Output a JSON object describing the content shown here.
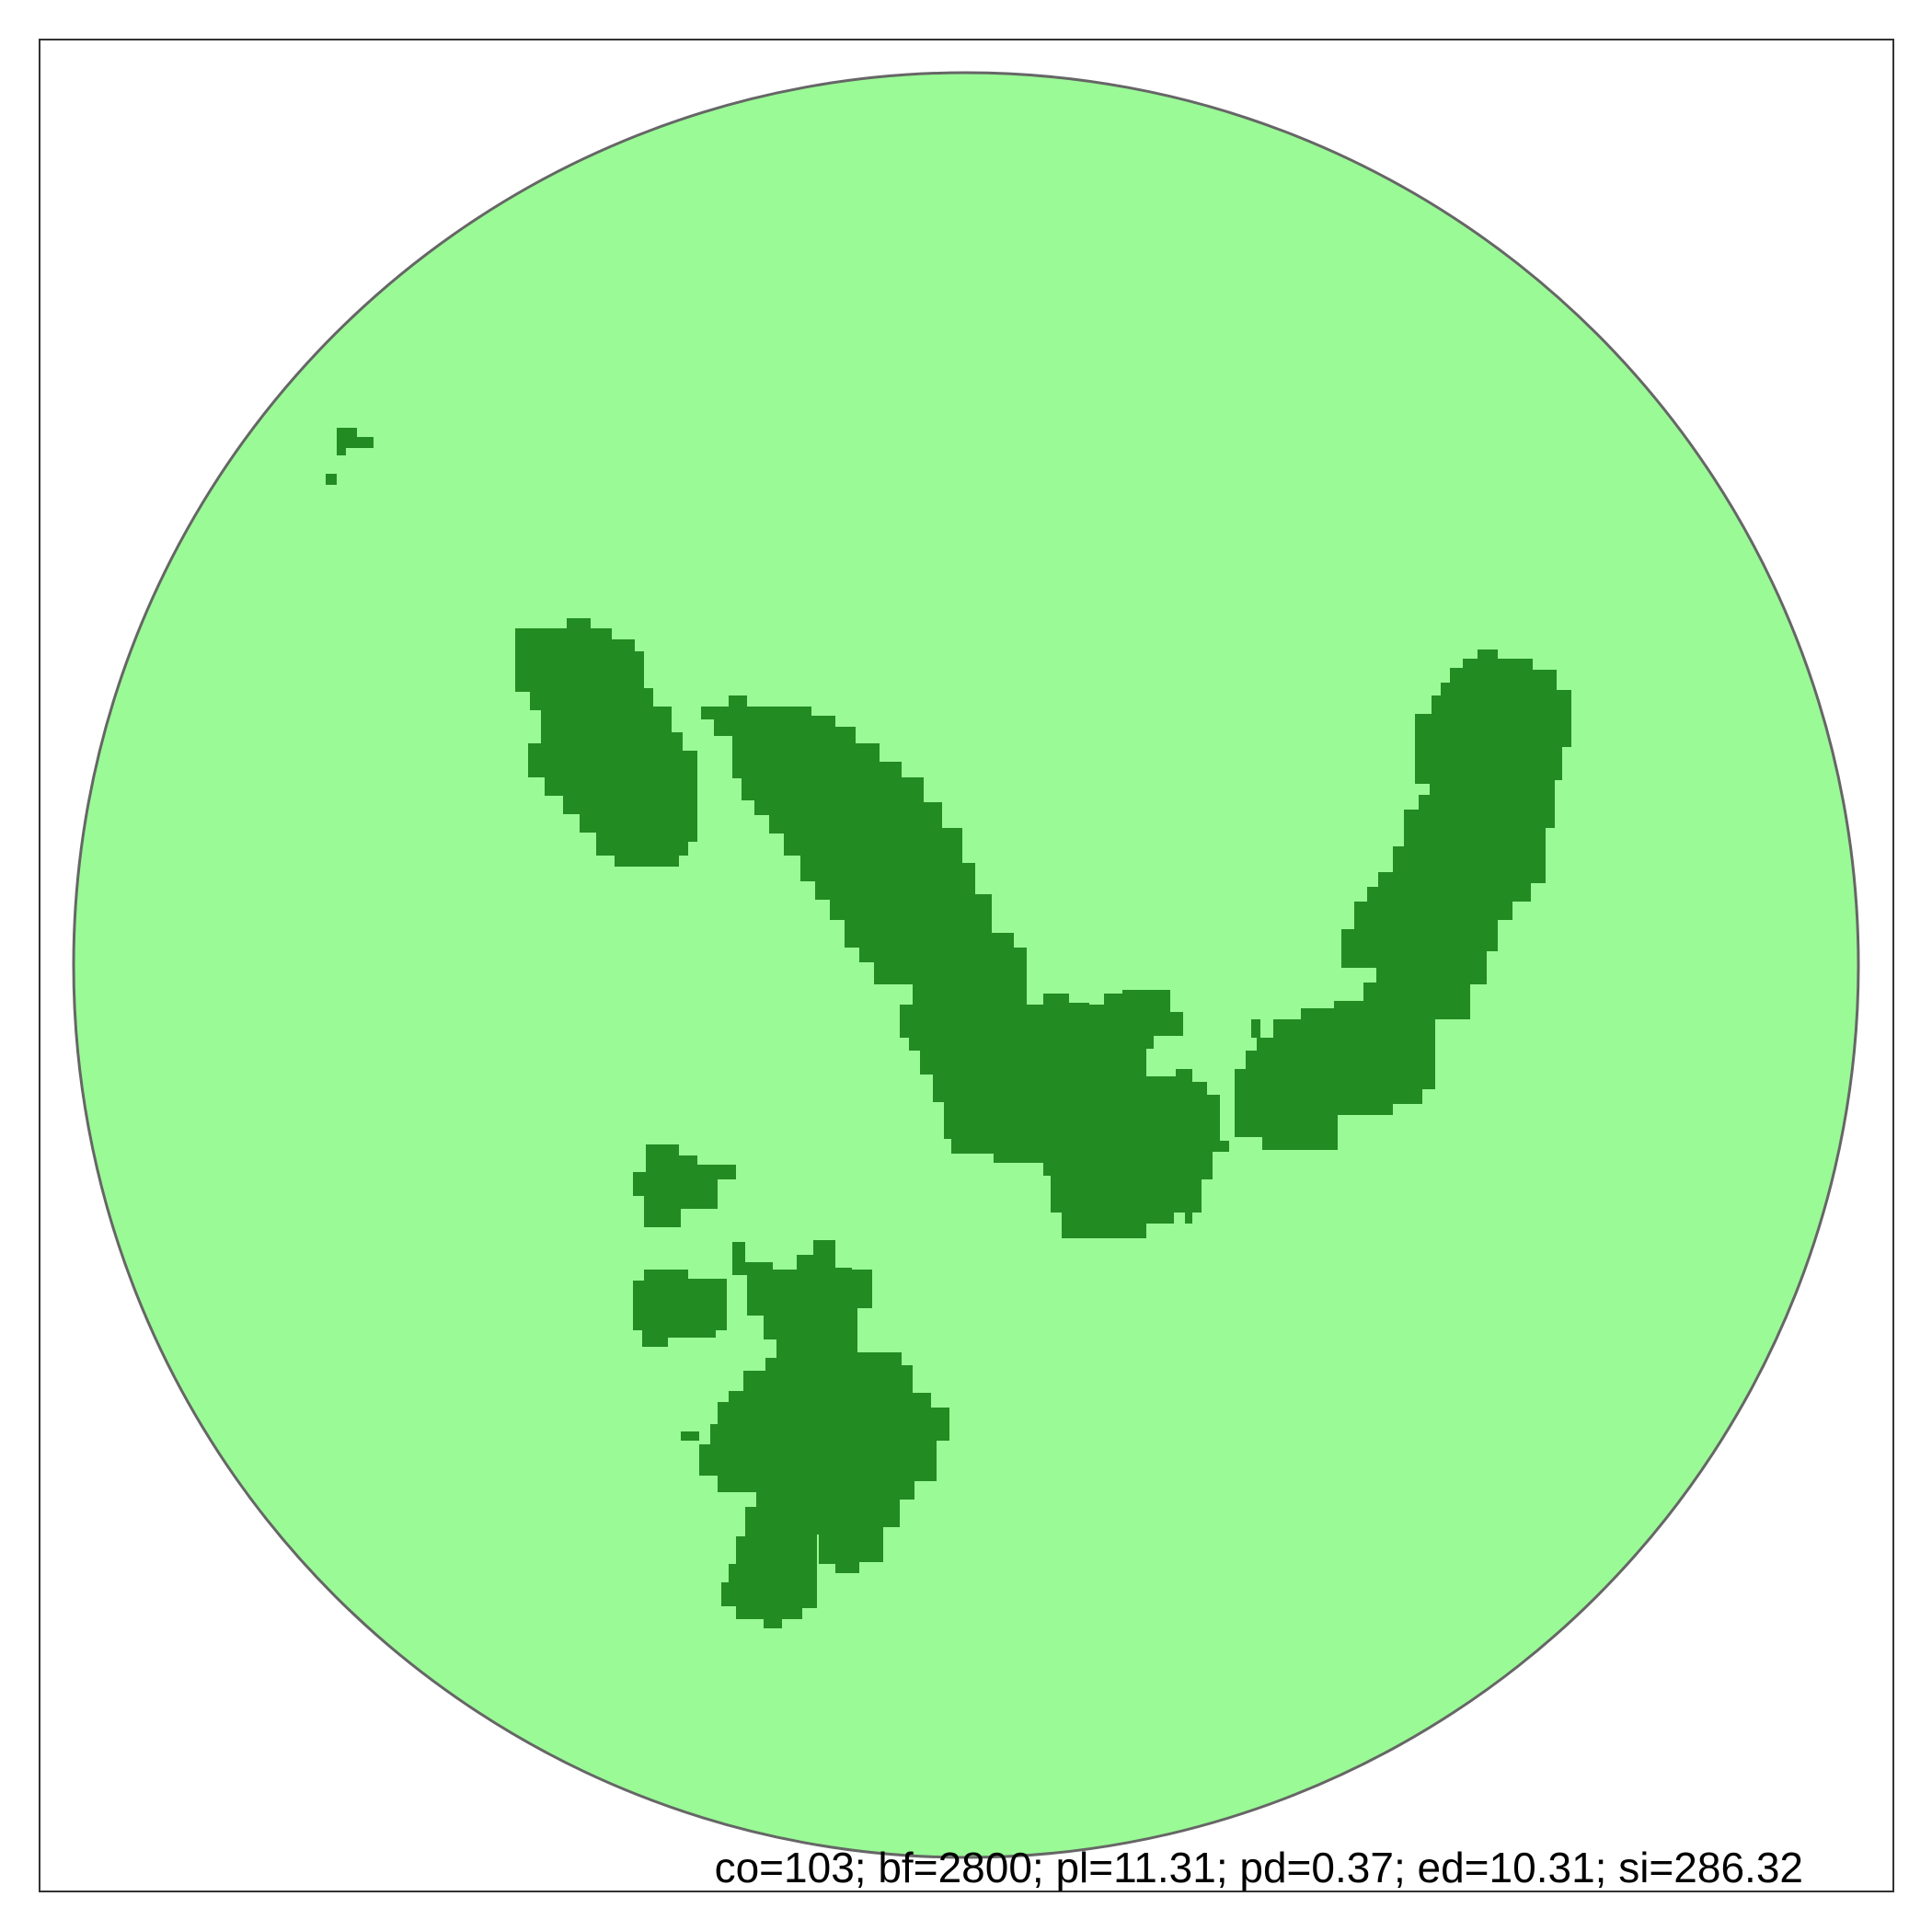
{
  "figure": {
    "stats_text": "co=103; bf=2800; pl=11.31; pd=0.37; ed=10.31; si=286.32"
  },
  "colors": {
    "background": "#ffffff",
    "frame": "#333333",
    "circle_fill": "#9afa96",
    "circle_stroke": "#666666",
    "patch_fill": "#228b22"
  },
  "legend": {
    "stats": {
      "co": 103,
      "bf": 2800,
      "pl": 11.31,
      "pd": 0.37,
      "ed": 10.31,
      "si": 286.32
    }
  }
}
